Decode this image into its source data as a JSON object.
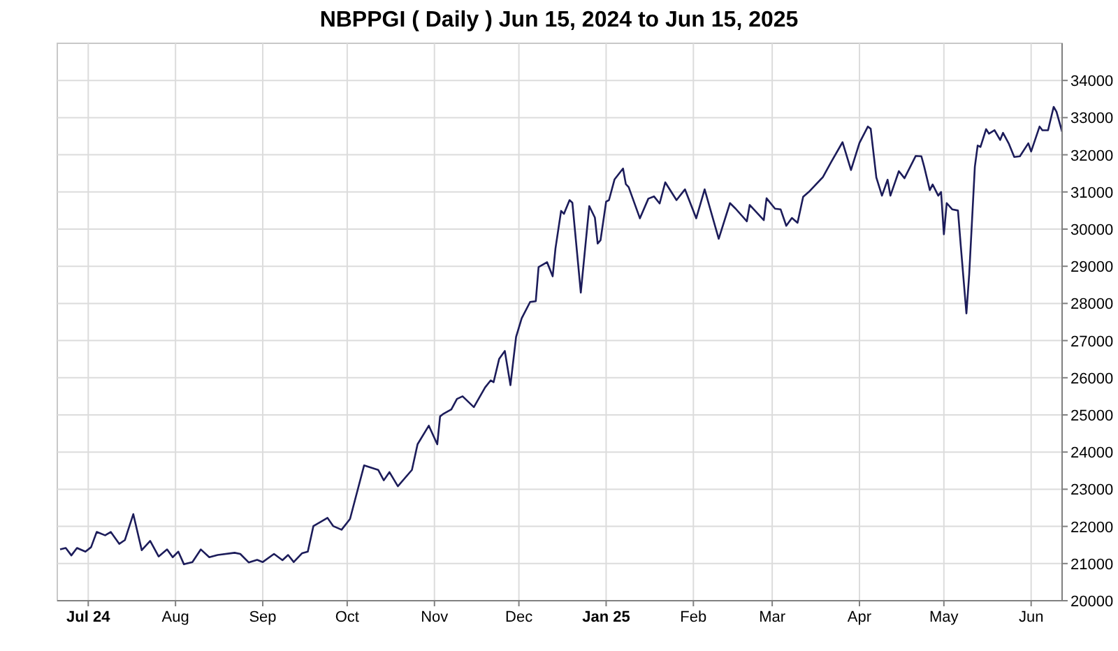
{
  "chart_data": {
    "type": "line",
    "title": "NBPPGI ( Daily ) Jun 15, 2024 to Jun 15, 2025",
    "x": [
      "2024-06-21",
      "2024-06-23",
      "2024-06-25",
      "2024-06-27",
      "2024-06-30",
      "2024-07-02",
      "2024-07-04",
      "2024-07-07",
      "2024-07-09",
      "2024-07-12",
      "2024-07-14",
      "2024-07-17",
      "2024-07-20",
      "2024-07-23",
      "2024-07-26",
      "2024-07-29",
      "2024-07-31",
      "2024-08-02",
      "2024-08-04",
      "2024-08-07",
      "2024-08-10",
      "2024-08-13",
      "2024-08-16",
      "2024-08-22",
      "2024-08-24",
      "2024-08-27",
      "2024-08-30",
      "2024-09-01",
      "2024-09-05",
      "2024-09-08",
      "2024-09-10",
      "2024-09-12",
      "2024-09-15",
      "2024-09-17",
      "2024-09-19",
      "2024-09-22",
      "2024-09-24",
      "2024-09-26",
      "2024-09-29",
      "2024-10-02",
      "2024-10-07",
      "2024-10-12",
      "2024-10-14",
      "2024-10-16",
      "2024-10-19",
      "2024-10-24",
      "2024-10-26",
      "2024-10-30",
      "2024-11-02",
      "2024-11-03",
      "2024-11-04",
      "2024-11-07",
      "2024-11-09",
      "2024-11-11",
      "2024-11-15",
      "2024-11-19",
      "2024-11-21",
      "2024-11-22",
      "2024-11-24",
      "2024-11-26",
      "2024-11-28",
      "2024-11-30",
      "2024-12-02",
      "2024-12-05",
      "2024-12-07",
      "2024-12-08",
      "2024-12-11",
      "2024-12-13",
      "2024-12-14",
      "2024-12-16",
      "2024-12-17",
      "2024-12-19",
      "2024-12-20",
      "2024-12-23",
      "2024-12-26",
      "2024-12-28",
      "2024-12-29",
      "2024-12-30",
      "2025-01-01",
      "2025-01-02",
      "2025-01-04",
      "2025-01-07",
      "2025-01-08",
      "2025-01-09",
      "2025-01-13",
      "2025-01-16",
      "2025-01-18",
      "2025-01-20",
      "2025-01-22",
      "2025-01-26",
      "2025-01-29",
      "2025-02-02",
      "2025-02-05",
      "2025-02-10",
      "2025-02-14",
      "2025-02-16",
      "2025-02-20",
      "2025-02-21",
      "2025-02-26",
      "2025-02-27",
      "2025-03-02",
      "2025-03-04",
      "2025-03-06",
      "2025-03-08",
      "2025-03-10",
      "2025-03-12",
      "2025-03-14",
      "2025-03-19",
      "2025-03-22",
      "2025-03-26",
      "2025-03-29",
      "2025-04-01",
      "2025-04-04",
      "2025-04-05",
      "2025-04-07",
      "2025-04-09",
      "2025-04-11",
      "2025-04-12",
      "2025-04-15",
      "2025-04-17",
      "2025-04-21",
      "2025-04-23",
      "2025-04-24",
      "2025-04-26",
      "2025-04-27",
      "2025-04-29",
      "2025-04-30",
      "2025-05-01",
      "2025-05-02",
      "2025-05-04",
      "2025-05-06",
      "2025-05-07",
      "2025-05-09",
      "2025-05-10",
      "2025-05-12",
      "2025-05-13",
      "2025-05-14",
      "2025-05-16",
      "2025-05-17",
      "2025-05-19",
      "2025-05-21",
      "2025-05-22",
      "2025-05-24",
      "2025-05-26",
      "2025-05-28",
      "2025-05-31",
      "2025-06-01",
      "2025-06-04",
      "2025-06-05",
      "2025-06-07",
      "2025-06-09",
      "2025-06-10",
      "2025-06-12"
    ],
    "series": [
      {
        "color": "#1c1c5a",
        "values": [
          21380,
          21420,
          21220,
          21420,
          21320,
          21440,
          21850,
          21760,
          21850,
          21530,
          21630,
          22330,
          21360,
          21610,
          21190,
          21380,
          21170,
          21320,
          20980,
          21040,
          21380,
          21170,
          21230,
          21290,
          21260,
          21030,
          21100,
          21040,
          21260,
          21090,
          21230,
          21040,
          21280,
          21320,
          22010,
          22140,
          22230,
          22010,
          21910,
          22200,
          23640,
          23520,
          23240,
          23460,
          23080,
          23520,
          24210,
          24710,
          24210,
          24960,
          25020,
          25150,
          25430,
          25500,
          25210,
          25740,
          25930,
          25880,
          26510,
          26720,
          25800,
          27100,
          27600,
          28040,
          28060,
          28980,
          29110,
          28730,
          29480,
          30490,
          30410,
          30780,
          30710,
          28290,
          30620,
          30310,
          29610,
          29700,
          30740,
          30780,
          31340,
          31630,
          31210,
          31130,
          30290,
          30820,
          30880,
          30690,
          31260,
          30780,
          31070,
          30290,
          31070,
          29740,
          30700,
          30550,
          30210,
          30650,
          30240,
          30830,
          30550,
          30530,
          30090,
          30300,
          30170,
          30870,
          31000,
          31400,
          31810,
          32340,
          31590,
          32320,
          32760,
          32700,
          31390,
          30900,
          31330,
          30900,
          31560,
          31370,
          31970,
          31960,
          31680,
          31050,
          31200,
          30900,
          31000,
          29860,
          30700,
          30530,
          30500,
          29550,
          27730,
          28790,
          31680,
          32250,
          32210,
          32690,
          32570,
          32660,
          32400,
          32590,
          32310,
          31940,
          31960,
          32310,
          32090,
          32760,
          32660,
          32660,
          33290,
          33160,
          32620
        ]
      }
    ],
    "xlim": [
      "2024-06-20",
      "2025-06-12"
    ],
    "xticks": [
      {
        "value": "2024-07-01",
        "label": "Jul 24"
      },
      {
        "value": "2024-08-01",
        "label": "Aug"
      },
      {
        "value": "2024-09-01",
        "label": "Sep"
      },
      {
        "value": "2024-10-01",
        "label": "Oct"
      },
      {
        "value": "2024-11-01",
        "label": "Nov"
      },
      {
        "value": "2024-12-01",
        "label": "Dec"
      },
      {
        "value": "2025-01-01",
        "label": "Jan 25"
      },
      {
        "value": "2025-02-01",
        "label": "Feb"
      },
      {
        "value": "2025-03-01",
        "label": "Mar"
      },
      {
        "value": "2025-04-01",
        "label": "Apr"
      },
      {
        "value": "2025-05-01",
        "label": "May"
      },
      {
        "value": "2025-06-01",
        "label": "Jun"
      }
    ],
    "ylim": [
      20000,
      35000
    ],
    "yticks": [
      20000,
      21000,
      22000,
      23000,
      24000,
      25000,
      26000,
      27000,
      28000,
      29000,
      30000,
      31000,
      32000,
      33000,
      34000
    ],
    "grid": true,
    "marker": "none",
    "line_style": "solid"
  }
}
